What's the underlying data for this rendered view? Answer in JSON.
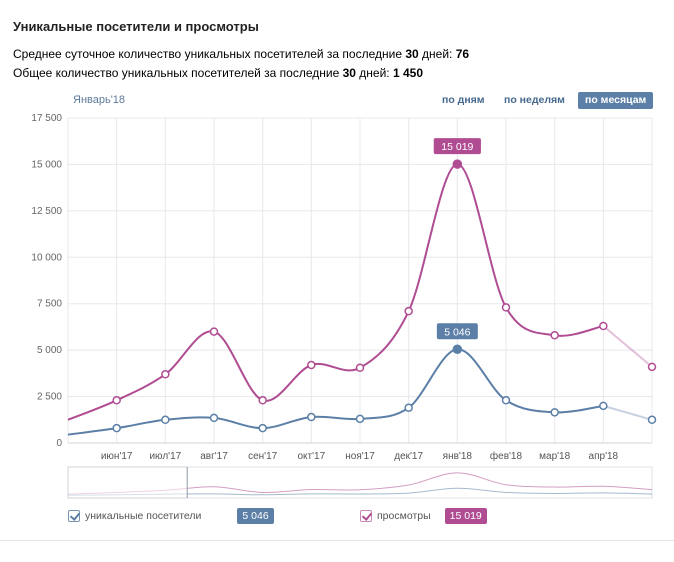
{
  "header": {
    "title": "Уникальные посетители и просмотры",
    "stat1_prefix": "Среднее суточное количество уникальных посетителей за последние ",
    "stat1_days": "30",
    "stat1_mid": " дней: ",
    "stat1_value": "76",
    "stat2_prefix": "Общее количество уникальных посетителей за последние ",
    "stat2_days": "30",
    "stat2_mid": " дней: ",
    "stat2_value": "1 450"
  },
  "controls": {
    "period_label": "Январь'18",
    "by_days": "по дням",
    "by_weeks": "по неделям",
    "by_months": "по месяцам"
  },
  "colors": {
    "visitors": "#5b7fa6",
    "views": "#b04c92",
    "grid": "#e6e8ec"
  },
  "chart_data": {
    "type": "line",
    "title": "",
    "xlabel": "",
    "ylabel": "",
    "ylim": [
      0,
      17500
    ],
    "yticks": [
      "0",
      "2 500",
      "5 000",
      "7 500",
      "10 000",
      "12 500",
      "15 000",
      "17 500"
    ],
    "ytick_values": [
      0,
      2500,
      5000,
      7500,
      10000,
      12500,
      15000,
      17500
    ],
    "categories": [
      "",
      "июн'17",
      "июл'17",
      "авг'17",
      "сен'17",
      "окт'17",
      "ноя'17",
      "дек'17",
      "янв'18",
      "фев'18",
      "мар'18",
      "апр'18",
      ""
    ],
    "grid": true,
    "series": [
      {
        "name": "уникальные посетители",
        "values": [
          450,
          800,
          1250,
          1350,
          800,
          1400,
          1300,
          1900,
          5046,
          2300,
          1650,
          2000,
          1250
        ]
      },
      {
        "name": "просмотры",
        "values": [
          1250,
          2300,
          3700,
          6000,
          2300,
          4200,
          4050,
          7100,
          15019,
          7300,
          5800,
          6300,
          4100
        ]
      }
    ],
    "highlight": {
      "index": 8,
      "visitors_label": "5 046",
      "views_label": "15 019"
    },
    "legend": [
      {
        "label": "уникальные посетители",
        "value": "5 046"
      },
      {
        "label": "просмотры",
        "value": "15 019"
      }
    ]
  }
}
